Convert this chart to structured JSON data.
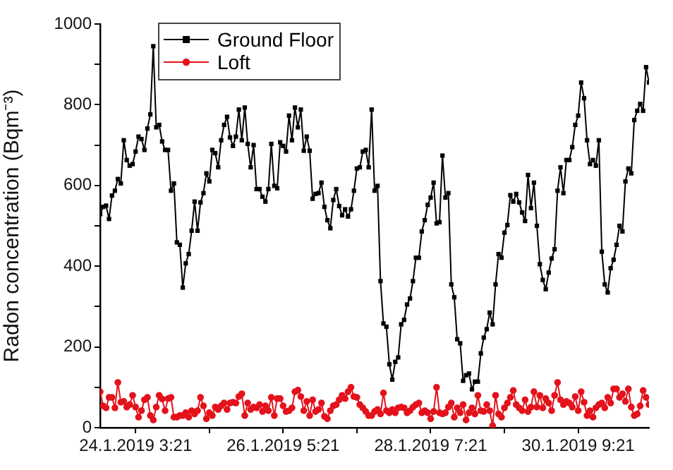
{
  "chart_data": {
    "type": "line",
    "xlabel": null,
    "ylabel": "Radon concentration (Bqm⁻³)",
    "x": [
      "2019-01-23T15:21",
      "2019-01-23T16:21",
      "2019-01-23T17:21",
      "2019-01-23T18:21",
      "2019-01-23T19:21",
      "2019-01-23T20:21",
      "2019-01-23T21:21",
      "2019-01-23T22:21",
      "2019-01-23T23:21",
      "2019-01-24T00:21",
      "2019-01-24T01:21",
      "2019-01-24T02:21",
      "2019-01-24T03:21",
      "2019-01-24T04:21",
      "2019-01-24T05:21",
      "2019-01-24T06:21",
      "2019-01-24T07:21",
      "2019-01-24T08:21",
      "2019-01-24T09:21",
      "2019-01-24T10:21",
      "2019-01-24T11:21",
      "2019-01-24T12:21",
      "2019-01-24T13:21",
      "2019-01-24T14:21",
      "2019-01-24T15:21",
      "2019-01-24T16:21",
      "2019-01-24T17:21",
      "2019-01-24T18:21",
      "2019-01-24T19:21",
      "2019-01-24T20:21",
      "2019-01-24T21:21",
      "2019-01-24T22:21",
      "2019-01-24T23:21",
      "2019-01-25T00:21",
      "2019-01-25T01:21",
      "2019-01-25T02:21",
      "2019-01-25T03:21",
      "2019-01-25T04:21",
      "2019-01-25T05:21",
      "2019-01-25T06:21",
      "2019-01-25T07:21",
      "2019-01-25T08:21",
      "2019-01-25T09:21",
      "2019-01-25T10:21",
      "2019-01-25T11:21",
      "2019-01-25T12:21",
      "2019-01-25T13:21",
      "2019-01-25T14:21",
      "2019-01-25T15:21",
      "2019-01-25T16:21",
      "2019-01-25T17:21",
      "2019-01-25T18:21",
      "2019-01-25T19:21",
      "2019-01-25T20:21",
      "2019-01-25T21:21",
      "2019-01-25T22:21",
      "2019-01-25T23:21",
      "2019-01-26T00:21",
      "2019-01-26T01:21",
      "2019-01-26T02:21",
      "2019-01-26T03:21",
      "2019-01-26T04:21",
      "2019-01-26T05:21",
      "2019-01-26T06:21",
      "2019-01-26T07:21",
      "2019-01-26T08:21",
      "2019-01-26T09:21",
      "2019-01-26T10:21",
      "2019-01-26T11:21",
      "2019-01-26T12:21",
      "2019-01-26T13:21",
      "2019-01-26T14:21",
      "2019-01-26T15:21",
      "2019-01-26T16:21",
      "2019-01-26T17:21",
      "2019-01-26T18:21",
      "2019-01-26T19:21",
      "2019-01-26T20:21",
      "2019-01-26T21:21",
      "2019-01-26T22:21",
      "2019-01-26T23:21",
      "2019-01-27T00:21",
      "2019-01-27T01:21",
      "2019-01-27T02:21",
      "2019-01-27T03:21",
      "2019-01-27T04:21",
      "2019-01-27T05:21",
      "2019-01-27T06:21",
      "2019-01-27T07:21",
      "2019-01-27T08:21",
      "2019-01-27T09:21",
      "2019-01-27T10:21",
      "2019-01-27T11:21",
      "2019-01-27T12:21",
      "2019-01-27T13:21",
      "2019-01-27T14:21",
      "2019-01-27T15:21",
      "2019-01-27T16:21",
      "2019-01-27T17:21",
      "2019-01-27T18:21",
      "2019-01-27T19:21",
      "2019-01-27T20:21",
      "2019-01-27T21:21",
      "2019-01-27T22:21",
      "2019-01-27T23:21",
      "2019-01-28T00:21",
      "2019-01-28T01:21",
      "2019-01-28T02:21",
      "2019-01-28T03:21",
      "2019-01-28T04:21",
      "2019-01-28T05:21",
      "2019-01-28T06:21",
      "2019-01-28T07:21",
      "2019-01-28T08:21",
      "2019-01-28T09:21",
      "2019-01-28T10:21",
      "2019-01-28T11:21",
      "2019-01-28T12:21",
      "2019-01-28T13:21",
      "2019-01-28T14:21",
      "2019-01-28T15:21",
      "2019-01-28T16:21",
      "2019-01-28T17:21",
      "2019-01-28T18:21",
      "2019-01-28T19:21",
      "2019-01-28T20:21",
      "2019-01-28T21:21",
      "2019-01-28T22:21",
      "2019-01-28T23:21",
      "2019-01-29T00:21",
      "2019-01-29T01:21",
      "2019-01-29T02:21",
      "2019-01-29T03:21",
      "2019-01-29T04:21",
      "2019-01-29T05:21",
      "2019-01-29T06:21",
      "2019-01-29T07:21",
      "2019-01-29T08:21",
      "2019-01-29T09:21",
      "2019-01-29T10:21",
      "2019-01-29T11:21",
      "2019-01-29T12:21",
      "2019-01-29T13:21",
      "2019-01-29T14:21",
      "2019-01-29T15:21",
      "2019-01-29T16:21",
      "2019-01-29T17:21",
      "2019-01-29T18:21",
      "2019-01-29T19:21",
      "2019-01-29T20:21",
      "2019-01-29T21:21",
      "2019-01-29T22:21",
      "2019-01-29T23:21",
      "2019-01-30T00:21",
      "2019-01-30T01:21",
      "2019-01-30T02:21",
      "2019-01-30T03:21",
      "2019-01-30T04:21",
      "2019-01-30T05:21",
      "2019-01-30T06:21",
      "2019-01-30T07:21",
      "2019-01-30T08:21",
      "2019-01-30T09:21",
      "2019-01-30T10:21",
      "2019-01-30T11:21",
      "2019-01-30T12:21",
      "2019-01-30T13:21",
      "2019-01-30T14:21",
      "2019-01-30T15:21",
      "2019-01-30T16:21",
      "2019-01-30T17:21",
      "2019-01-30T18:21",
      "2019-01-30T19:21",
      "2019-01-30T20:21",
      "2019-01-30T21:21",
      "2019-01-30T22:21",
      "2019-01-30T23:21",
      "2019-01-31T00:21",
      "2019-01-31T01:21",
      "2019-01-31T02:21",
      "2019-01-31T03:21",
      "2019-01-31T04:21",
      "2019-01-31T05:21",
      "2019-01-31T06:21",
      "2019-01-31T07:21",
      "2019-01-31T08:21",
      "2019-01-31T09:21"
    ],
    "series": [
      {
        "name": "Ground Floor",
        "color": "#000000",
        "marker": "square",
        "values": [
          529,
          547,
          550,
          517,
          575,
          587,
          616,
          605,
          712,
          663,
          649,
          653,
          684,
          721,
          715,
          688,
          741,
          776,
          945,
          744,
          750,
          709,
          688,
          688,
          587,
          605,
          459,
          453,
          347,
          407,
          430,
          488,
          560,
          488,
          558,
          581,
          630,
          610,
          688,
          680,
          645,
          712,
          750,
          770,
          719,
          698,
          721,
          788,
          712,
          793,
          703,
          645,
          700,
          591,
          591,
          572,
          560,
          591,
          703,
          599,
          593,
          707,
          698,
          684,
          773,
          712,
          793,
          744,
          788,
          686,
          721,
          686,
          567,
          579,
          581,
          607,
          547,
          514,
          494,
          564,
          591,
          549,
          526,
          541,
          523,
          541,
          587,
          642,
          645,
          684,
          688,
          645,
          788,
          587,
          599,
          363,
          258,
          250,
          157,
          119,
          163,
          174,
          256,
          267,
          305,
          320,
          363,
          421,
          421,
          486,
          514,
          552,
          570,
          607,
          506,
          509,
          674,
          570,
          581,
          355,
          323,
          219,
          209,
          116,
          130,
          134,
          95,
          114,
          114,
          184,
          223,
          244,
          285,
          256,
          355,
          430,
          421,
          483,
          502,
          576,
          560,
          579,
          558,
          533,
          512,
          626,
          544,
          607,
          500,
          405,
          366,
          343,
          384,
          419,
          442,
          587,
          645,
          581,
          663,
          663,
          695,
          750,
          773,
          855,
          816,
          712,
          653,
          663,
          649,
          712,
          436,
          355,
          335,
          395,
          416,
          453,
          500,
          486,
          610,
          642,
          630,
          762,
          785,
          802,
          785,
          893,
          855
        ]
      },
      {
        "name": "Loft",
        "color": "#e3121b",
        "marker": "circle",
        "values": [
          89,
          54,
          49,
          75,
          75,
          49,
          112,
          63,
          65,
          51,
          57,
          80,
          51,
          26,
          42,
          69,
          75,
          30,
          19,
          51,
          80,
          71,
          42,
          72,
          75,
          26,
          26,
          30,
          30,
          37,
          26,
          42,
          34,
          42,
          75,
          54,
          22,
          37,
          30,
          51,
          45,
          54,
          61,
          45,
          61,
          63,
          61,
          77,
          84,
          30,
          61,
          45,
          51,
          49,
          57,
          40,
          54,
          42,
          75,
          30,
          72,
          72,
          54,
          40,
          42,
          49,
          89,
          93,
          77,
          42,
          65,
          30,
          69,
          40,
          45,
          61,
          28,
          22,
          42,
          54,
          57,
          69,
          80,
          72,
          89,
          100,
          77,
          75,
          57,
          49,
          40,
          30,
          30,
          40,
          45,
          34,
          86,
          42,
          37,
          45,
          37,
          49,
          51,
          49,
          37,
          42,
          51,
          57,
          61,
          37,
          42,
          37,
          22,
          40,
          100,
          37,
          34,
          37,
          51,
          61,
          26,
          49,
          37,
          57,
          19,
          37,
          49,
          34,
          80,
          42,
          40,
          57,
          42,
          5,
          80,
          34,
          26,
          49,
          61,
          75,
          92,
          57,
          49,
          42,
          69,
          40,
          51,
          89,
          51,
          80,
          49,
          72,
          61,
          42,
          80,
          112,
          69,
          57,
          65,
          61,
          51,
          77,
          42,
          89,
          63,
          30,
          42,
          26,
          49,
          57,
          61,
          49,
          75,
          61,
          96,
          96,
          75,
          84,
          65,
          96,
          51,
          30,
          34,
          54,
          92,
          75,
          57
        ]
      }
    ],
    "xlim": [
      "2019-01-23T15:21",
      "2019-01-31T09:21"
    ],
    "xticks": [
      {
        "value": "2019-01-24T03:21",
        "label": "24.1.2019 3:21"
      },
      {
        "value": "2019-01-25T04:21",
        "label": null
      },
      {
        "value": "2019-01-26T05:21",
        "label": "26.1.2019 5:21"
      },
      {
        "value": "2019-01-27T06:21",
        "label": null
      },
      {
        "value": "2019-01-28T07:21",
        "label": "28.1.2019 7:21"
      },
      {
        "value": "2019-01-29T08:21",
        "label": null
      },
      {
        "value": "2019-01-30T09:21",
        "label": "30.1.2019 9:21"
      }
    ],
    "ylim": [
      0,
      1000
    ],
    "yticks": [
      0,
      {
        "value": 100,
        "label": null
      },
      200,
      {
        "value": 300,
        "label": null
      },
      400,
      {
        "value": 500,
        "label": null
      },
      600,
      {
        "value": 700,
        "label": null
      },
      800,
      {
        "value": 900,
        "label": null
      },
      1000
    ],
    "legend": "top left"
  }
}
